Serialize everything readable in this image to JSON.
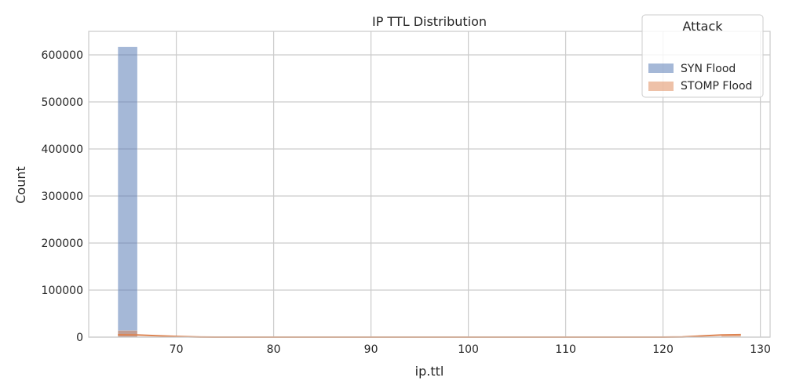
{
  "chart_data": {
    "type": "histogram",
    "title": "IP TTL Distribution",
    "xlabel": "ip.ttl",
    "ylabel": "Count",
    "xlim": [
      61,
      131
    ],
    "ylim": [
      0,
      650000
    ],
    "xticks": [
      70,
      80,
      90,
      100,
      110,
      120,
      130
    ],
    "yticks": [
      0,
      100000,
      200000,
      300000,
      400000,
      500000,
      600000
    ],
    "grid": true,
    "legend": {
      "title": "Attack",
      "position": "top-right"
    },
    "bin_width": 2,
    "series": [
      {
        "name": "SYN Flood",
        "color": "#4c72b0",
        "bins": [
          {
            "x0": 64,
            "x1": 66,
            "count": 617000
          }
        ],
        "kde": []
      },
      {
        "name": "STOMP Flood",
        "color": "#dd8452",
        "bins": [
          {
            "x0": 64,
            "x1": 66,
            "count": 14000
          },
          {
            "x0": 126,
            "x1": 128,
            "count": 5000
          }
        ],
        "kde": [
          [
            64,
            5000
          ],
          [
            66,
            4500
          ],
          [
            68,
            3000
          ],
          [
            70,
            1500
          ],
          [
            72,
            400
          ],
          [
            74,
            0
          ],
          [
            120,
            0
          ],
          [
            122,
            500
          ],
          [
            124,
            2500
          ],
          [
            126,
            4500
          ],
          [
            128,
            5200
          ]
        ]
      }
    ]
  }
}
